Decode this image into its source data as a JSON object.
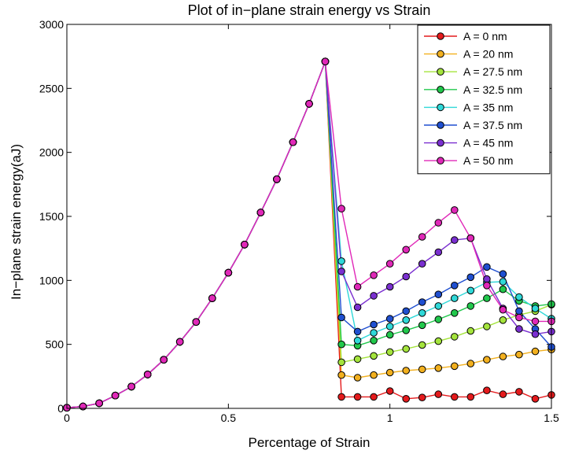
{
  "chart_data": {
    "type": "line",
    "title": "Plot of in−plane strain energy vs Strain",
    "xlabel": "Percentage of Strain",
    "ylabel": "In−plane strain energy(aJ)",
    "xlim": [
      0,
      1.5
    ],
    "ylim": [
      0,
      3000
    ],
    "xticks": [
      0,
      0.5,
      1,
      1.5
    ],
    "xtick_labels": [
      "0",
      "0.5",
      "1",
      "1.5"
    ],
    "yticks": [
      0,
      500,
      1000,
      1500,
      2000,
      2500,
      3000
    ],
    "ytick_labels": [
      "0",
      "500",
      "1000",
      "1500",
      "2000",
      "2500",
      "3000"
    ],
    "grid": false,
    "legend_position": "top-right",
    "x": [
      0,
      0.05,
      0.1,
      0.15,
      0.2,
      0.25,
      0.3,
      0.35,
      0.4,
      0.45,
      0.5,
      0.55,
      0.6,
      0.65,
      0.7,
      0.75,
      0.8,
      0.85,
      0.9,
      0.95,
      1.0,
      1.05,
      1.1,
      1.15,
      1.2,
      1.25,
      1.3,
      1.35,
      1.4,
      1.45,
      1.5
    ],
    "series": [
      {
        "name": "A = 0 nm",
        "color": "#e41a1c",
        "values": [
          5,
          15,
          40,
          100,
          170,
          265,
          380,
          520,
          675,
          860,
          1060,
          1280,
          1530,
          1790,
          2080,
          2380,
          2710,
          90,
          90,
          90,
          135,
          75,
          85,
          110,
          90,
          90,
          140,
          110,
          130,
          75,
          105
        ]
      },
      {
        "name": "A = 20 nm",
        "color": "#f2b01e",
        "values": [
          5,
          15,
          40,
          100,
          170,
          265,
          380,
          520,
          675,
          860,
          1060,
          1280,
          1530,
          1790,
          2080,
          2380,
          2710,
          260,
          240,
          260,
          280,
          295,
          305,
          315,
          330,
          350,
          380,
          405,
          420,
          445,
          460
        ]
      },
      {
        "name": "A = 27.5 nm",
        "color": "#a4e43c",
        "values": [
          5,
          15,
          40,
          100,
          170,
          265,
          380,
          520,
          675,
          860,
          1060,
          1280,
          1530,
          1790,
          2080,
          2380,
          2710,
          360,
          385,
          410,
          440,
          465,
          495,
          525,
          560,
          605,
          640,
          690,
          730,
          760,
          810
        ]
      },
      {
        "name": "A = 32.5 nm",
        "color": "#21c84c",
        "values": [
          5,
          15,
          40,
          100,
          170,
          265,
          380,
          520,
          675,
          860,
          1060,
          1280,
          1530,
          1790,
          2080,
          2380,
          2710,
          500,
          490,
          530,
          575,
          610,
          650,
          695,
          745,
          800,
          860,
          930,
          840,
          800,
          815
        ]
      },
      {
        "name": "A = 35 nm",
        "color": "#2fd8d8",
        "values": [
          5,
          15,
          40,
          100,
          170,
          265,
          380,
          520,
          675,
          860,
          1060,
          1280,
          1530,
          1790,
          2080,
          2380,
          2710,
          1150,
          530,
          590,
          640,
          690,
          745,
          800,
          860,
          920,
          985,
          990,
          870,
          780,
          700
        ]
      },
      {
        "name": "A = 37.5 nm",
        "color": "#1f4fd0",
        "values": [
          5,
          15,
          40,
          100,
          170,
          265,
          380,
          520,
          675,
          860,
          1060,
          1280,
          1530,
          1790,
          2080,
          2380,
          2710,
          710,
          600,
          655,
          700,
          760,
          830,
          890,
          960,
          1025,
          1105,
          1050,
          760,
          620,
          480
        ]
      },
      {
        "name": "A = 45 nm",
        "color": "#7a2fd0",
        "values": [
          5,
          15,
          40,
          100,
          170,
          265,
          380,
          520,
          675,
          860,
          1060,
          1280,
          1530,
          1790,
          2080,
          2380,
          2710,
          1070,
          790,
          880,
          950,
          1030,
          1130,
          1220,
          1315,
          1330,
          1010,
          780,
          620,
          580,
          600
        ]
      },
      {
        "name": "A = 50 nm",
        "color": "#e028b8",
        "values": [
          5,
          15,
          40,
          100,
          170,
          265,
          380,
          520,
          675,
          860,
          1060,
          1280,
          1530,
          1790,
          2080,
          2380,
          2710,
          1560,
          950,
          1040,
          1130,
          1240,
          1340,
          1450,
          1550,
          1330,
          960,
          770,
          710,
          680,
          680
        ]
      }
    ]
  }
}
